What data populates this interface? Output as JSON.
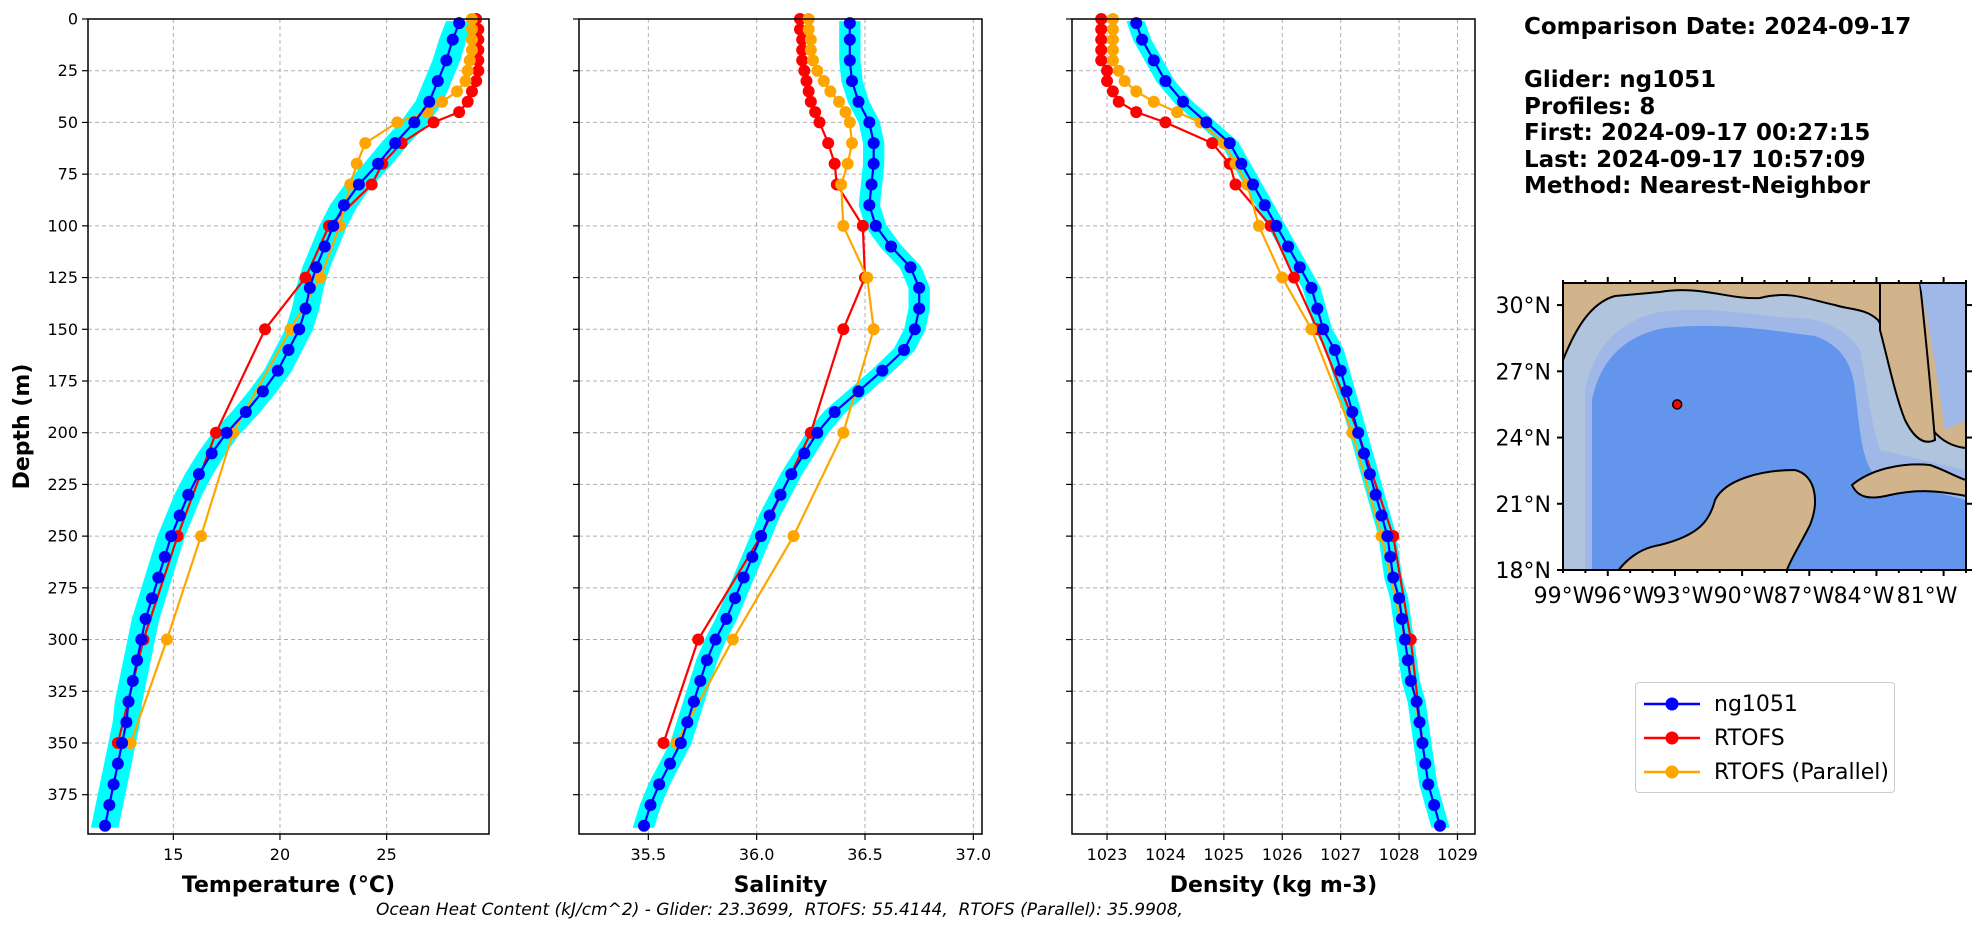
{
  "info": {
    "comparison_date": "Comparison Date: 2024-09-17",
    "glider": "Glider: ng1051",
    "profiles": "Profiles: 8",
    "first": "First: 2024-09-17 00:27:15",
    "last": "Last: 2024-09-17 10:57:09",
    "method": "Method: Nearest-Neighbor"
  },
  "footer": "Ocean Heat Content (kJ/cm^2) - Glider: 23.3699,  RTOFS: 55.4144,  RTOFS (Parallel): 35.9908,",
  "colors": {
    "glider": "#0000ff",
    "rtofs": "#ff0000",
    "parallel": "#ffa500",
    "spread": "#00ffff",
    "land": "#d2b48c",
    "shelf": "#b0c4de",
    "slope": "#9fb8e8",
    "deep": "#6495ed"
  },
  "chart_data": [
    {
      "type": "line",
      "xlabel": "Temperature (°C)",
      "ylabel": "Depth (m)",
      "xlim": [
        11,
        29.8
      ],
      "ylim": [
        394,
        0
      ],
      "xticks": [
        15,
        20,
        25
      ],
      "yticks": [
        0,
        25,
        50,
        75,
        100,
        125,
        150,
        175,
        200,
        225,
        250,
        275,
        300,
        325,
        350,
        375
      ],
      "grid": true,
      "series": [
        {
          "name": "ng1051",
          "depth": [
            2,
            10,
            20,
            30,
            40,
            50,
            60,
            70,
            80,
            90,
            100,
            110,
            120,
            130,
            140,
            150,
            160,
            170,
            180,
            190,
            200,
            210,
            220,
            230,
            240,
            250,
            260,
            270,
            280,
            290,
            300,
            310,
            320,
            330,
            340,
            350,
            360,
            370,
            380,
            390
          ],
          "values": [
            28.4,
            28.1,
            27.8,
            27.4,
            27.0,
            26.3,
            25.4,
            24.6,
            23.7,
            23.0,
            22.5,
            22.1,
            21.7,
            21.4,
            21.2,
            20.9,
            20.4,
            19.9,
            19.2,
            18.4,
            17.5,
            16.8,
            16.2,
            15.7,
            15.3,
            14.9,
            14.6,
            14.3,
            14.0,
            13.7,
            13.5,
            13.3,
            13.1,
            12.9,
            12.8,
            12.6,
            12.4,
            12.2,
            12.0,
            11.8
          ]
        },
        {
          "name": "RTOFS",
          "depth": [
            0,
            5,
            10,
            15,
            20,
            25,
            30,
            35,
            40,
            45,
            50,
            60,
            70,
            80,
            100,
            125,
            150,
            200,
            250,
            300,
            350
          ],
          "values": [
            29.2,
            29.3,
            29.3,
            29.3,
            29.3,
            29.3,
            29.2,
            29.0,
            28.8,
            28.4,
            27.2,
            25.7,
            24.8,
            24.3,
            22.3,
            21.2,
            19.3,
            17.0,
            15.2,
            13.6,
            12.4
          ]
        },
        {
          "name": "RTOFS (Parallel)",
          "depth": [
            0,
            5,
            10,
            15,
            20,
            25,
            30,
            35,
            40,
            45,
            50,
            60,
            70,
            80,
            100,
            125,
            150,
            200,
            250,
            300,
            350
          ],
          "values": [
            29.0,
            29.0,
            29.0,
            29.0,
            28.9,
            28.8,
            28.7,
            28.3,
            27.6,
            26.9,
            25.5,
            24.0,
            23.6,
            23.3,
            22.8,
            21.9,
            20.5,
            17.8,
            16.3,
            14.7,
            13.0
          ]
        }
      ]
    },
    {
      "type": "line",
      "xlabel": "Salinity",
      "xlim": [
        35.18,
        37.04
      ],
      "ylim": [
        394,
        0
      ],
      "xticks": [
        35.5,
        36.0,
        36.5,
        37.0
      ],
      "grid": true,
      "series": [
        {
          "name": "ng1051",
          "depth": [
            2,
            10,
            20,
            30,
            40,
            50,
            60,
            70,
            80,
            90,
            100,
            110,
            120,
            130,
            140,
            150,
            160,
            170,
            180,
            190,
            200,
            210,
            220,
            230,
            240,
            250,
            260,
            270,
            280,
            290,
            300,
            310,
            320,
            330,
            340,
            350,
            360,
            370,
            380,
            390
          ],
          "values": [
            36.43,
            36.43,
            36.43,
            36.44,
            36.47,
            36.52,
            36.54,
            36.54,
            36.53,
            36.52,
            36.55,
            36.62,
            36.71,
            36.75,
            36.75,
            36.73,
            36.68,
            36.58,
            36.47,
            36.36,
            36.28,
            36.22,
            36.16,
            36.11,
            36.06,
            36.02,
            35.98,
            35.94,
            35.9,
            35.86,
            35.81,
            35.77,
            35.74,
            35.71,
            35.68,
            35.65,
            35.6,
            35.55,
            35.51,
            35.48
          ]
        },
        {
          "name": "RTOFS",
          "depth": [
            0,
            5,
            10,
            15,
            20,
            25,
            30,
            35,
            40,
            45,
            50,
            60,
            70,
            80,
            100,
            125,
            150,
            200,
            250,
            300,
            350
          ],
          "values": [
            36.2,
            36.2,
            36.21,
            36.21,
            36.21,
            36.22,
            36.23,
            36.24,
            36.25,
            36.27,
            36.29,
            36.33,
            36.36,
            36.37,
            36.49,
            36.5,
            36.4,
            36.25,
            36.02,
            35.73,
            35.57
          ]
        },
        {
          "name": "RTOFS (Parallel)",
          "depth": [
            0,
            5,
            10,
            15,
            20,
            25,
            30,
            35,
            40,
            45,
            50,
            60,
            70,
            80,
            100,
            125,
            150,
            200,
            250,
            300,
            350
          ],
          "values": [
            36.24,
            36.24,
            36.25,
            36.25,
            36.26,
            36.28,
            36.31,
            36.34,
            36.38,
            36.41,
            36.43,
            36.44,
            36.42,
            36.39,
            36.4,
            36.51,
            36.54,
            36.4,
            36.17,
            35.89,
            35.63
          ]
        }
      ]
    },
    {
      "type": "line",
      "xlabel": "Density (kg m-3)",
      "xlim": [
        1022.4,
        1029.3
      ],
      "ylim": [
        394,
        0
      ],
      "xticks": [
        1023,
        1024,
        1025,
        1026,
        1027,
        1028,
        1029
      ],
      "grid": true,
      "series": [
        {
          "name": "ng1051",
          "depth": [
            2,
            10,
            20,
            30,
            40,
            50,
            60,
            70,
            80,
            90,
            100,
            110,
            120,
            130,
            140,
            150,
            160,
            170,
            180,
            190,
            200,
            210,
            220,
            230,
            240,
            250,
            260,
            270,
            280,
            290,
            300,
            310,
            320,
            330,
            340,
            350,
            360,
            370,
            380,
            390
          ],
          "values": [
            1023.5,
            1023.6,
            1023.8,
            1024.0,
            1024.3,
            1024.7,
            1025.1,
            1025.3,
            1025.5,
            1025.7,
            1025.9,
            1026.1,
            1026.3,
            1026.5,
            1026.6,
            1026.7,
            1026.9,
            1027.0,
            1027.1,
            1027.2,
            1027.3,
            1027.4,
            1027.5,
            1027.6,
            1027.7,
            1027.8,
            1027.85,
            1027.9,
            1028.0,
            1028.05,
            1028.1,
            1028.15,
            1028.2,
            1028.3,
            1028.35,
            1028.4,
            1028.45,
            1028.5,
            1028.6,
            1028.7
          ]
        },
        {
          "name": "RTOFS",
          "depth": [
            0,
            5,
            10,
            15,
            20,
            25,
            30,
            35,
            40,
            45,
            50,
            60,
            70,
            80,
            100,
            125,
            150,
            200,
            250,
            300,
            350
          ],
          "values": [
            1022.9,
            1022.9,
            1022.9,
            1022.9,
            1022.9,
            1023.0,
            1023.0,
            1023.1,
            1023.2,
            1023.5,
            1024.0,
            1024.8,
            1025.1,
            1025.2,
            1025.8,
            1026.2,
            1026.6,
            1027.3,
            1027.9,
            1028.2,
            1028.4
          ]
        },
        {
          "name": "RTOFS (Parallel)",
          "depth": [
            0,
            5,
            10,
            15,
            20,
            25,
            30,
            35,
            40,
            45,
            50,
            60,
            70,
            80,
            100,
            125,
            150,
            200,
            250,
            300,
            350
          ],
          "values": [
            1023.1,
            1023.1,
            1023.1,
            1023.1,
            1023.1,
            1023.2,
            1023.3,
            1023.5,
            1023.8,
            1024.2,
            1024.6,
            1025.0,
            1025.2,
            1025.4,
            1025.6,
            1026.0,
            1026.5,
            1027.2,
            1027.7,
            1028.1,
            1028.4
          ]
        }
      ]
    }
  ],
  "map": {
    "lat_ticks": [
      "30°N",
      "27°N",
      "24°N",
      "21°N",
      "18°N"
    ],
    "lon_ticks": [
      "99°W",
      "96°W",
      "93°W",
      "90°W",
      "87°W",
      "84°W",
      "81°W"
    ],
    "lon_range": [
      -98,
      -80
    ],
    "lat_range": [
      18,
      31
    ],
    "glider_position": {
      "lon": -92.9,
      "lat": 25.5
    }
  },
  "legend": [
    "ng1051",
    "RTOFS",
    "RTOFS (Parallel)"
  ]
}
